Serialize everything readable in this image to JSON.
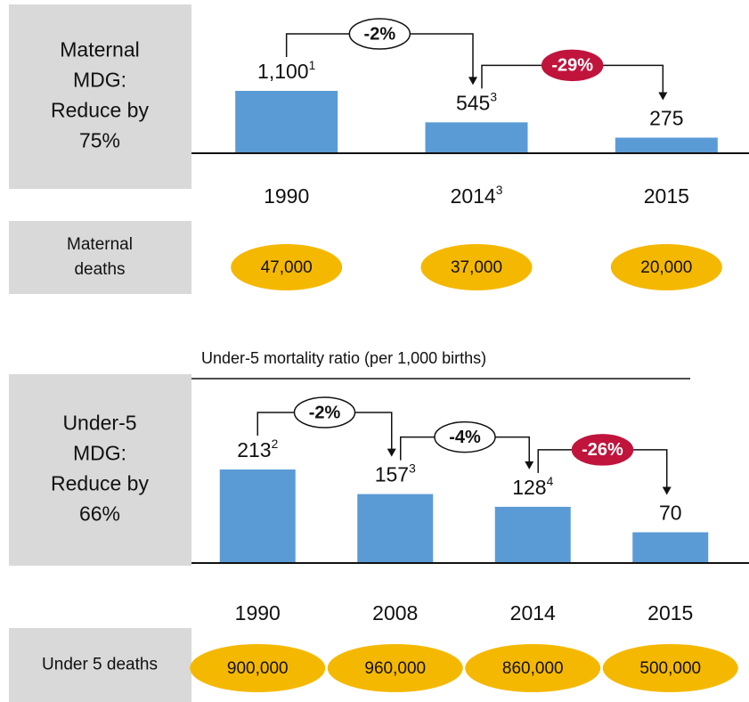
{
  "chart_data": [
    {
      "type": "bar",
      "label": [
        "Maternal",
        "MDG:",
        "Reduce by",
        "75%"
      ],
      "categories": [
        "1990",
        "2014",
        "2015"
      ],
      "category_notes": [
        null,
        "3",
        null
      ],
      "values": [
        1100,
        545,
        275
      ],
      "value_labels": [
        "1,100",
        "545",
        "275"
      ],
      "value_notes": [
        "1",
        "3",
        null
      ],
      "color": "#5b9bd5",
      "changes": [
        {
          "label": "-2%",
          "color": "#ffffff"
        },
        {
          "label": "-29%",
          "color": "#c0143c"
        }
      ],
      "deaths": {
        "label": [
          "Maternal",
          "deaths"
        ],
        "values": [
          "47,000",
          "37,000",
          "20,000"
        ],
        "color": "#f5b800"
      }
    },
    {
      "type": "bar",
      "subtitle": "Under-5 mortality ratio (per 1,000 births)",
      "label": [
        "Under-5",
        "MDG:",
        "Reduce by",
        "66%"
      ],
      "categories": [
        "1990",
        "2008",
        "2014",
        "2015"
      ],
      "category_notes": [
        null,
        null,
        null,
        null
      ],
      "values": [
        213,
        157,
        128,
        70
      ],
      "value_notes": [
        "2",
        "3",
        "4",
        null
      ],
      "color": "#5b9bd5",
      "changes": [
        {
          "label": "-2%",
          "color": "#ffffff"
        },
        {
          "label": "-4%",
          "color": "#ffffff"
        },
        {
          "label": "-26%",
          "color": "#c0143c"
        }
      ],
      "deaths": {
        "label": [
          "Under 5 deaths"
        ],
        "values": [
          "900,000",
          "960,000",
          "860,000",
          "500,000"
        ],
        "color": "#f5b800"
      }
    }
  ]
}
